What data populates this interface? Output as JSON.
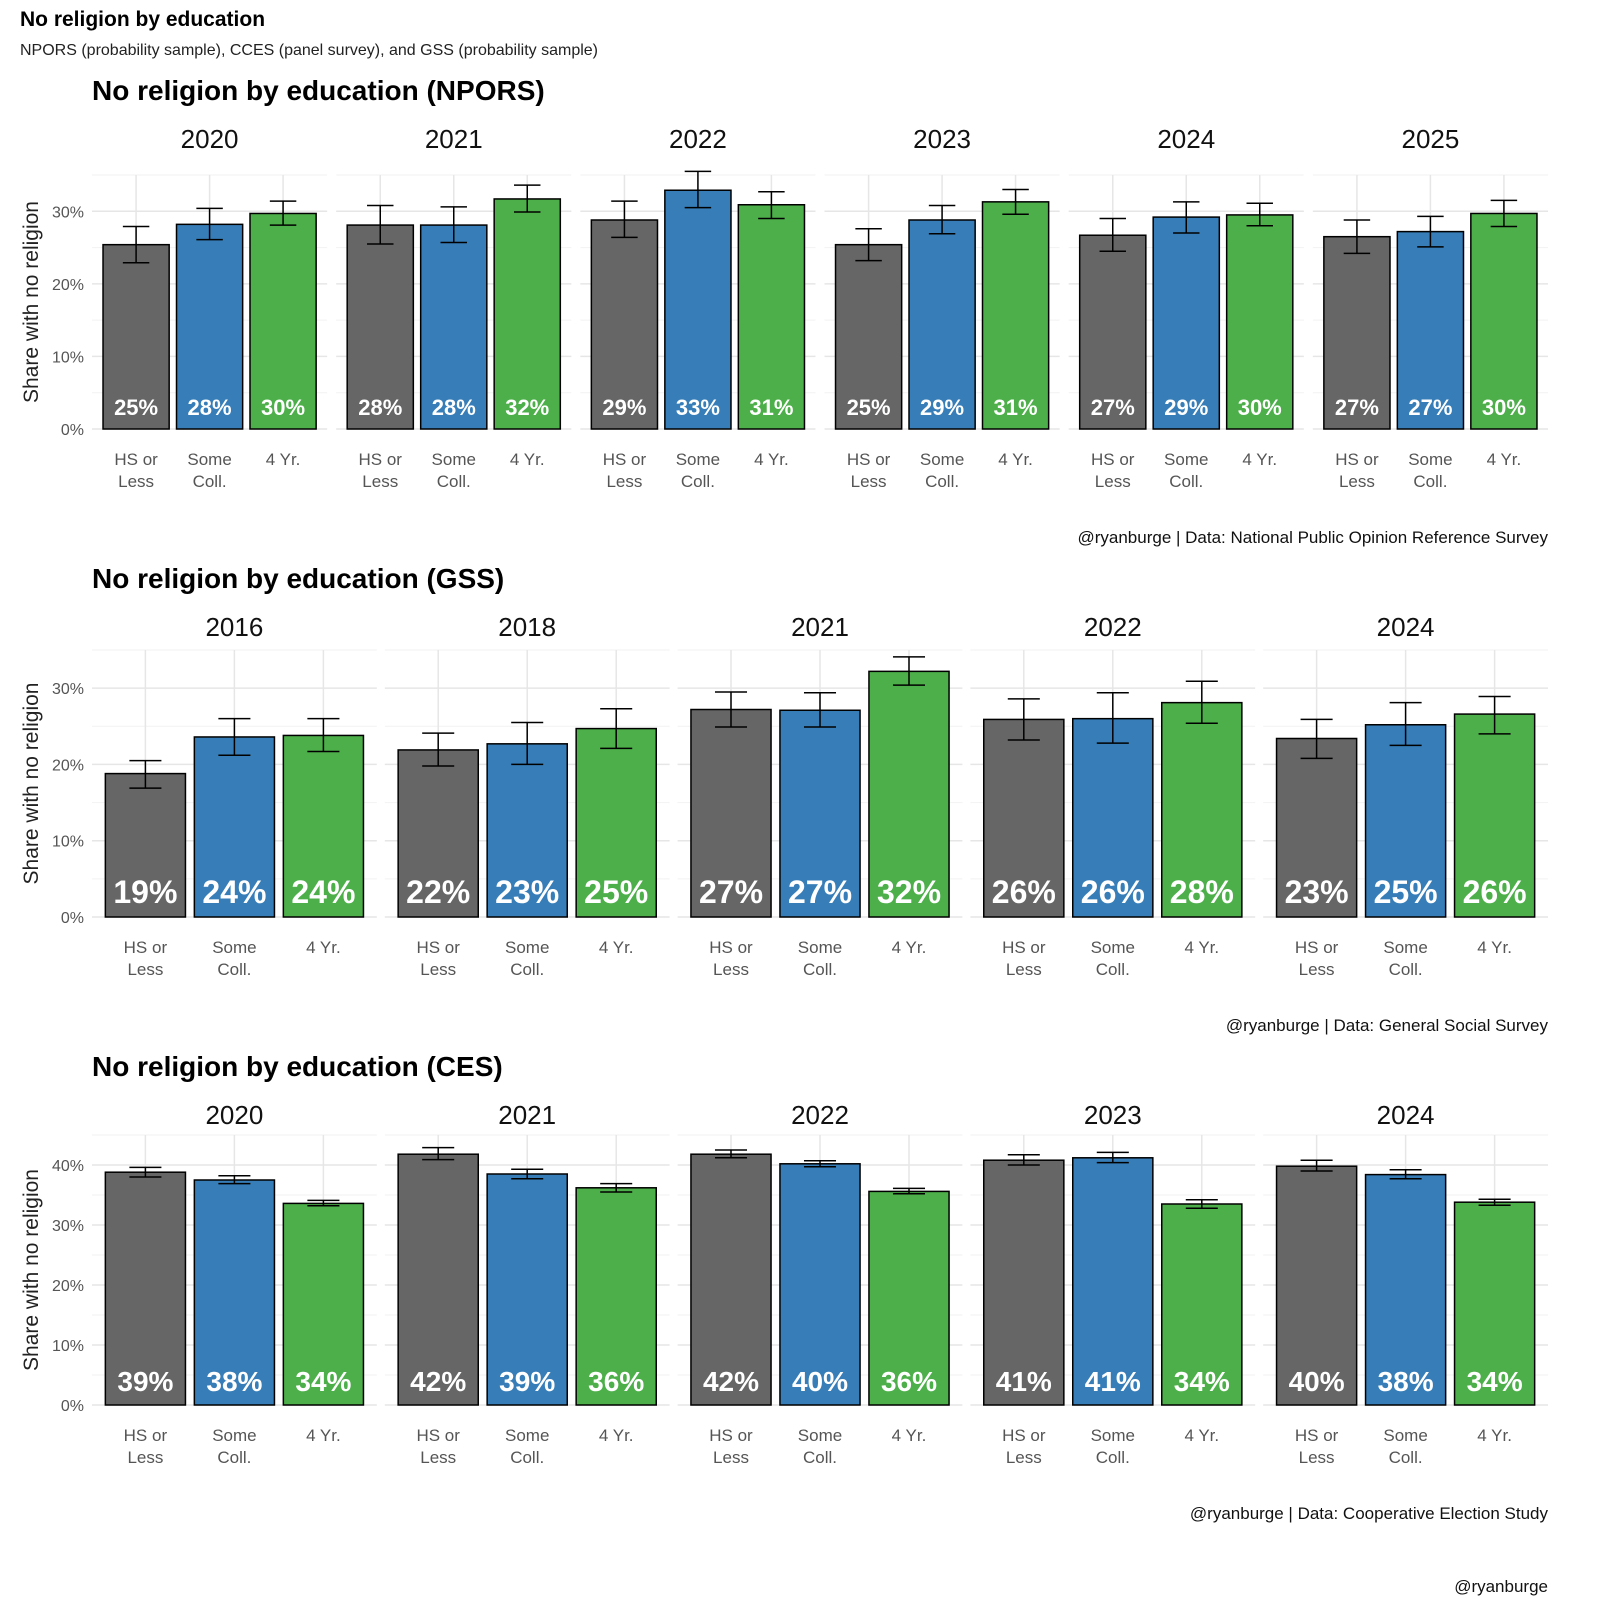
{
  "title": "No religion by education",
  "subtitle": "NPORS (probability sample), CCES (panel survey), and GSS (probability sample)",
  "footer": "@ryanburge",
  "colors": {
    "HS or Less": "#666666",
    "Some Coll.": "#377EB8",
    "4 Yr.": "#4DAF4A"
  },
  "chart_data": [
    {
      "type": "bar",
      "title": "No religion by education (NPORS)",
      "ylabel": "Share with no religion",
      "caption": "@ryanburge | Data: National Public Opinion Reference Survey",
      "ylim": [
        0,
        35
      ],
      "yticks": [
        "0%",
        "10%",
        "20%",
        "30%"
      ],
      "categories": [
        [
          "HS or",
          "Less"
        ],
        [
          "Some",
          "Coll."
        ],
        [
          "4 Yr.",
          ""
        ]
      ],
      "facets": [
        {
          "year": "2020",
          "values": [
            25.4,
            28.2,
            29.7
          ],
          "ci": [
            [
              22.9,
              27.9
            ],
            [
              26.1,
              30.4
            ],
            [
              28.1,
              31.4
            ]
          ],
          "labels": [
            "25%",
            "28%",
            "30%"
          ]
        },
        {
          "year": "2021",
          "values": [
            28.1,
            28.1,
            31.7
          ],
          "ci": [
            [
              25.5,
              30.8
            ],
            [
              25.7,
              30.6
            ],
            [
              29.9,
              33.6
            ]
          ],
          "labels": [
            "28%",
            "28%",
            "32%"
          ]
        },
        {
          "year": "2022",
          "values": [
            28.8,
            32.9,
            30.9
          ],
          "ci": [
            [
              26.4,
              31.4
            ],
            [
              30.5,
              35.5
            ],
            [
              29.0,
              32.7
            ]
          ],
          "labels": [
            "29%",
            "33%",
            "31%"
          ]
        },
        {
          "year": "2023",
          "values": [
            25.4,
            28.8,
            31.3
          ],
          "ci": [
            [
              23.2,
              27.6
            ],
            [
              26.9,
              30.8
            ],
            [
              29.6,
              33.0
            ]
          ],
          "labels": [
            "25%",
            "29%",
            "31%"
          ]
        },
        {
          "year": "2024",
          "values": [
            26.7,
            29.2,
            29.5
          ],
          "ci": [
            [
              24.5,
              29.0
            ],
            [
              27.0,
              31.3
            ],
            [
              28.0,
              31.1
            ]
          ],
          "labels": [
            "27%",
            "29%",
            "30%"
          ]
        },
        {
          "year": "2025",
          "values": [
            26.5,
            27.2,
            29.7
          ],
          "ci": [
            [
              24.2,
              28.8
            ],
            [
              25.1,
              29.3
            ],
            [
              27.9,
              31.5
            ]
          ],
          "labels": [
            "27%",
            "27%",
            "30%"
          ]
        }
      ]
    },
    {
      "type": "bar",
      "title": "No religion by education (GSS)",
      "ylabel": "Share with no religion",
      "caption": "@ryanburge | Data: General Social Survey",
      "ylim": [
        0,
        35
      ],
      "yticks": [
        "0%",
        "10%",
        "20%",
        "30%"
      ],
      "categories": [
        [
          "HS or",
          "Less"
        ],
        [
          "Some",
          "Coll."
        ],
        [
          "4 Yr.",
          ""
        ]
      ],
      "facets": [
        {
          "year": "2016",
          "values": [
            18.8,
            23.6,
            23.8
          ],
          "ci": [
            [
              16.9,
              20.5
            ],
            [
              21.2,
              26.0
            ],
            [
              21.7,
              26.0
            ]
          ],
          "labels": [
            "19%",
            "24%",
            "24%"
          ]
        },
        {
          "year": "2018",
          "values": [
            21.9,
            22.7,
            24.7
          ],
          "ci": [
            [
              19.8,
              24.1
            ],
            [
              20.0,
              25.5
            ],
            [
              22.1,
              27.3
            ]
          ],
          "labels": [
            "22%",
            "23%",
            "25%"
          ]
        },
        {
          "year": "2021",
          "values": [
            27.2,
            27.1,
            32.2
          ],
          "ci": [
            [
              24.9,
              29.5
            ],
            [
              24.9,
              29.4
            ],
            [
              30.4,
              34.1
            ]
          ],
          "labels": [
            "27%",
            "27%",
            "32%"
          ]
        },
        {
          "year": "2022",
          "values": [
            25.9,
            26.0,
            28.1
          ],
          "ci": [
            [
              23.2,
              28.6
            ],
            [
              22.8,
              29.4
            ],
            [
              25.4,
              30.9
            ]
          ],
          "labels": [
            "26%",
            "26%",
            "28%"
          ]
        },
        {
          "year": "2024",
          "values": [
            23.4,
            25.2,
            26.6
          ],
          "ci": [
            [
              20.8,
              25.9
            ],
            [
              22.5,
              28.1
            ],
            [
              24.0,
              28.9
            ]
          ],
          "labels": [
            "23%",
            "25%",
            "26%"
          ]
        }
      ]
    },
    {
      "type": "bar",
      "title": "No religion by education (CES)",
      "ylabel": "Share with no religion",
      "caption": "@ryanburge | Data: Cooperative Election Study",
      "ylim": [
        0,
        45
      ],
      "yticks": [
        "0%",
        "10%",
        "20%",
        "30%",
        "40%"
      ],
      "categories": [
        [
          "HS or",
          "Less"
        ],
        [
          "Some",
          "Coll."
        ],
        [
          "4 Yr.",
          ""
        ]
      ],
      "facets": [
        {
          "year": "2020",
          "values": [
            38.8,
            37.5,
            33.6
          ],
          "ci": [
            [
              38.0,
              39.6
            ],
            [
              36.9,
              38.2
            ],
            [
              33.2,
              34.1
            ]
          ],
          "labels": [
            "39%",
            "38%",
            "34%"
          ]
        },
        {
          "year": "2021",
          "values": [
            41.8,
            38.5,
            36.2
          ],
          "ci": [
            [
              40.9,
              42.9
            ],
            [
              37.7,
              39.3
            ],
            [
              35.5,
              36.9
            ]
          ],
          "labels": [
            "42%",
            "39%",
            "36%"
          ]
        },
        {
          "year": "2022",
          "values": [
            41.8,
            40.2,
            35.6
          ],
          "ci": [
            [
              41.2,
              42.5
            ],
            [
              39.7,
              40.7
            ],
            [
              35.2,
              36.1
            ]
          ],
          "labels": [
            "42%",
            "40%",
            "36%"
          ]
        },
        {
          "year": "2023",
          "values": [
            40.8,
            41.2,
            33.5
          ],
          "ci": [
            [
              40.0,
              41.7
            ],
            [
              40.4,
              42.1
            ],
            [
              32.8,
              34.2
            ]
          ],
          "labels": [
            "41%",
            "41%",
            "34%"
          ]
        },
        {
          "year": "2024",
          "values": [
            39.8,
            38.4,
            33.8
          ],
          "ci": [
            [
              39.0,
              40.8
            ],
            [
              37.7,
              39.2
            ],
            [
              33.3,
              34.3
            ]
          ],
          "labels": [
            "40%",
            "38%",
            "34%"
          ]
        }
      ]
    }
  ]
}
